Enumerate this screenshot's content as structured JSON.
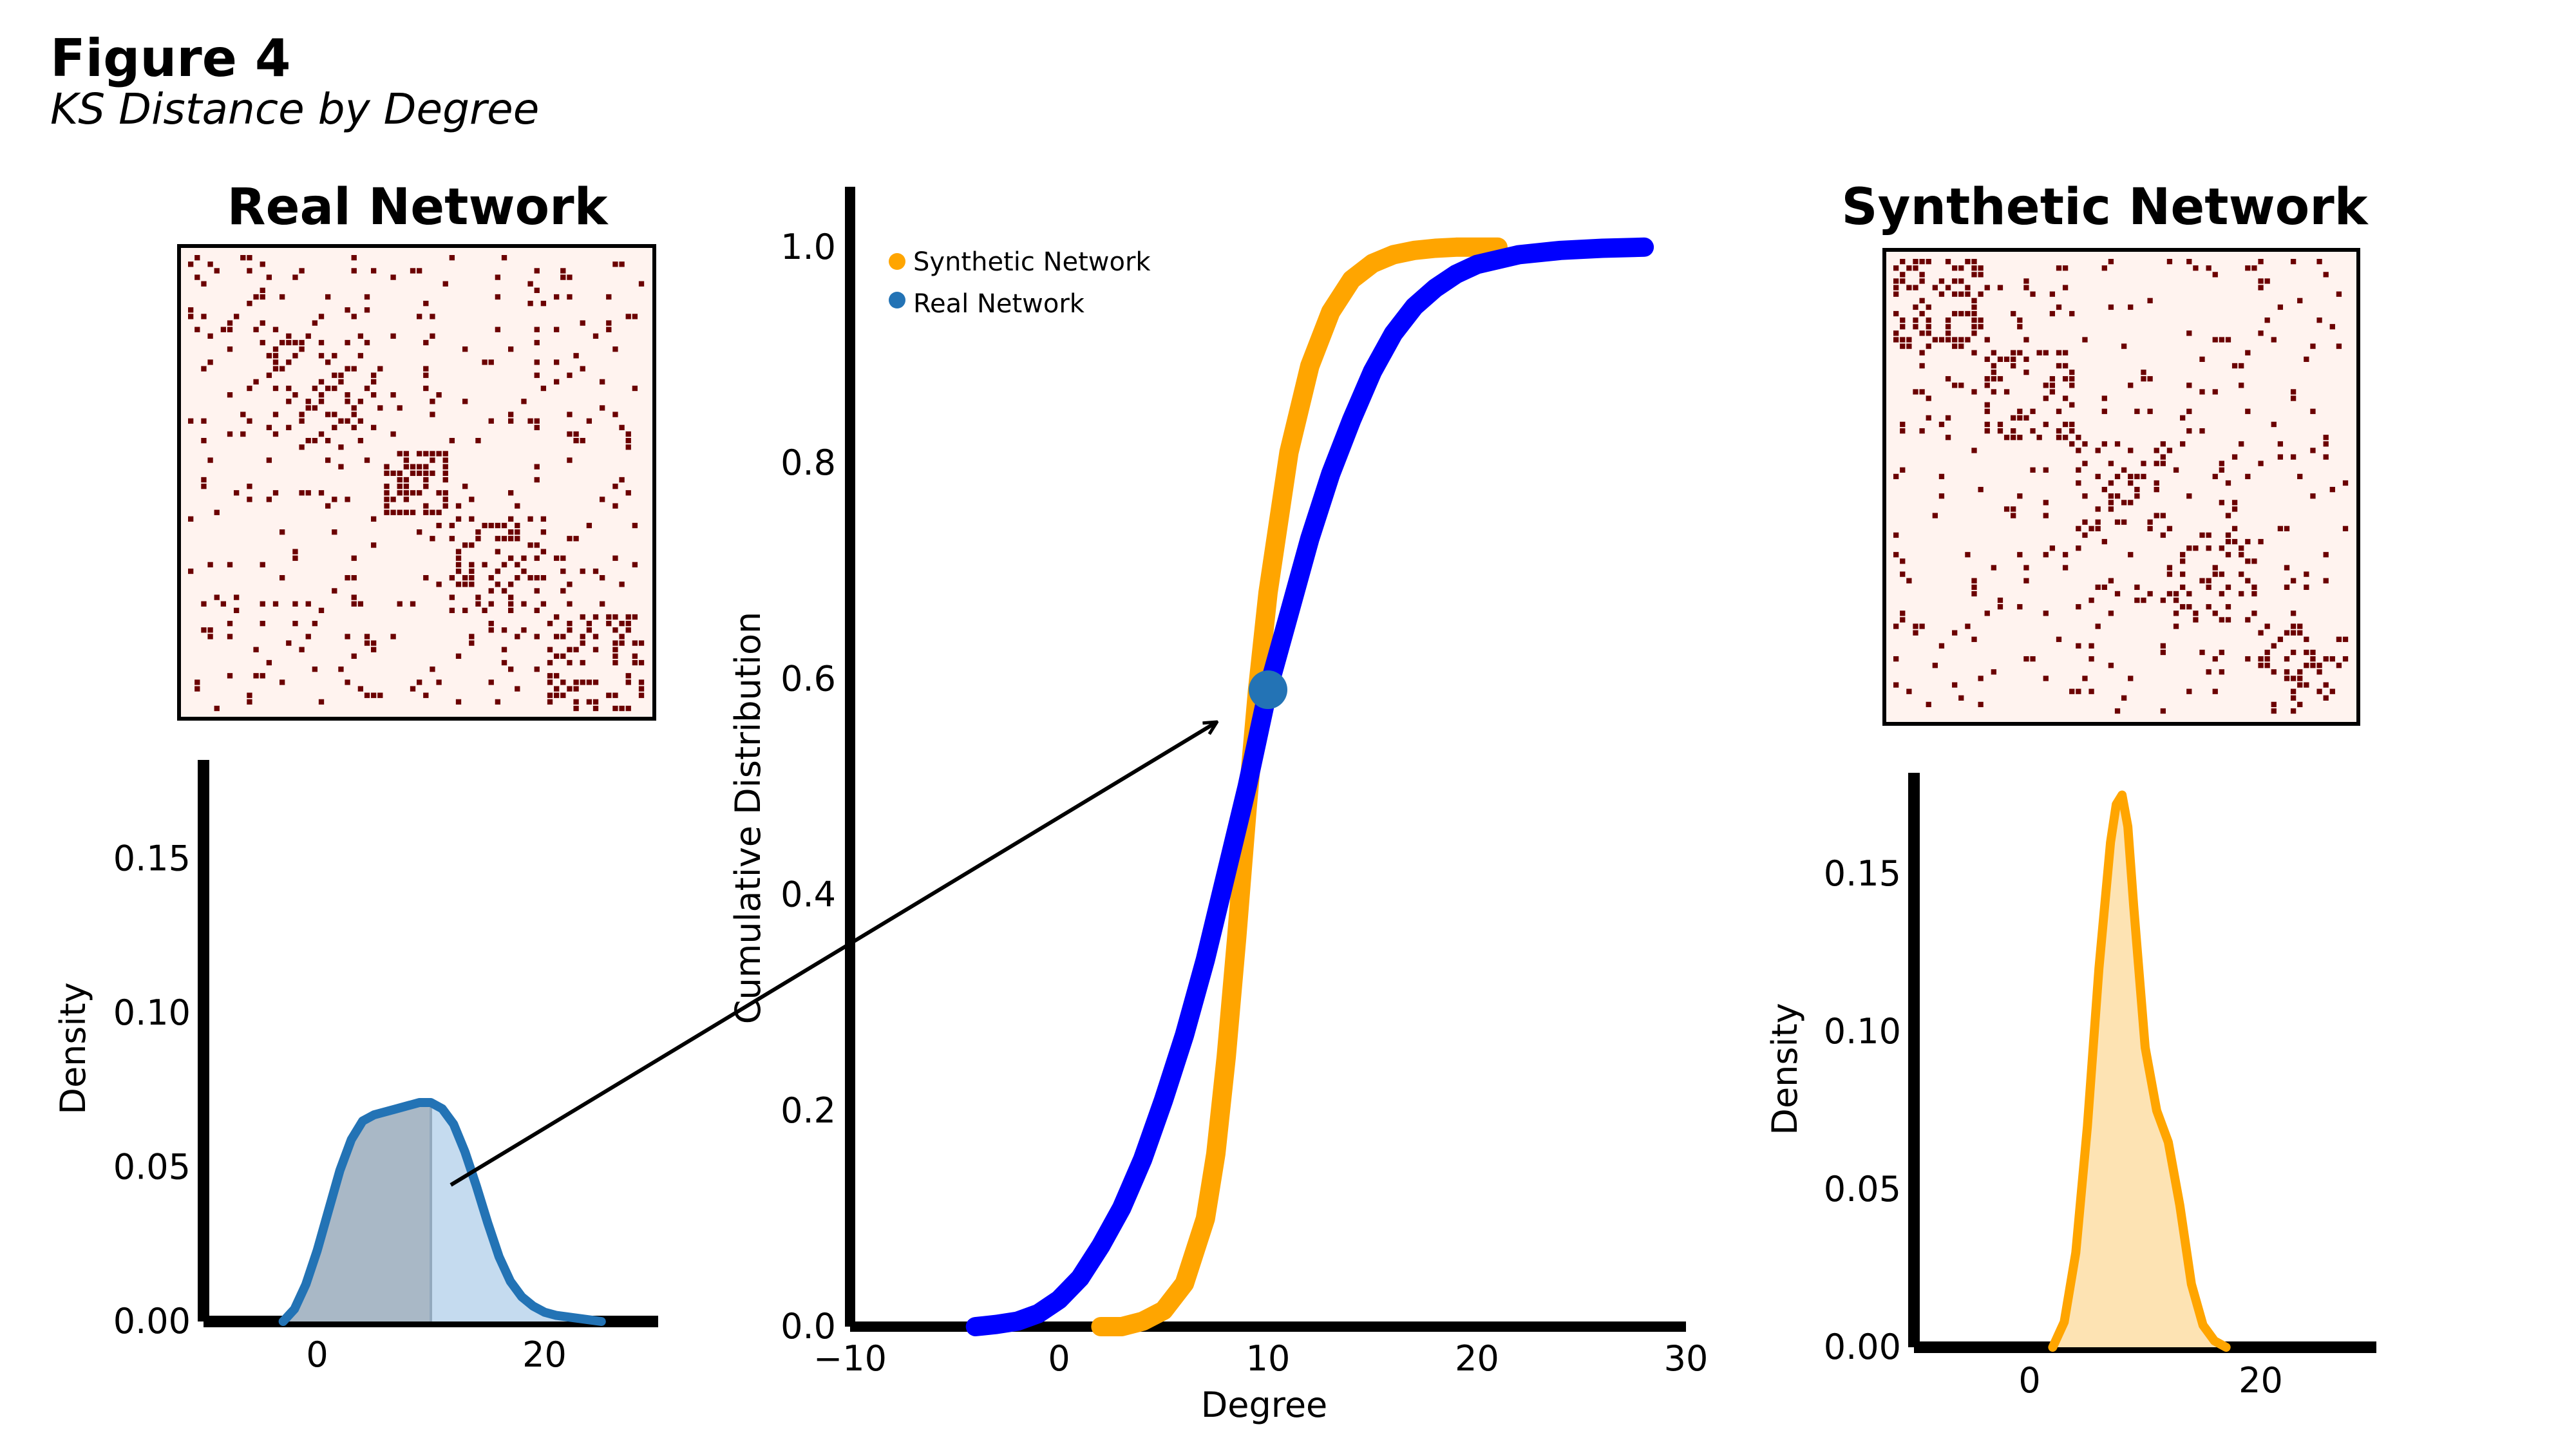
{
  "figure": {
    "title": "Figure 4",
    "subtitle": "KS Distance by Degree"
  },
  "colors": {
    "matrix_cell": "#6b0000",
    "matrix_bg": "#fff3ef",
    "real_kde": "#2373b5",
    "real_fill_dark": "#a9b8c6",
    "real_fill_light": "#c5dbef",
    "synthetic_kde": "#ffa500",
    "synthetic_fill": "#fde3b3",
    "synthetic_cdf": "#ffa500",
    "real_cdf": "#0000ff",
    "ks_marker": "#2373b5"
  },
  "matrices": {
    "real": {
      "title": "Real Network",
      "size": 70,
      "density": 0.11,
      "clustered": true
    },
    "synthetic": {
      "title": "Synthetic Network",
      "size": 70,
      "density": 0.12,
      "clustered": false
    }
  },
  "chart_data": [
    {
      "id": "cdf",
      "type": "line",
      "title": "",
      "xlabel": "Degree",
      "ylabel": "Cumulative Distribution",
      "xlim": [
        -10,
        30
      ],
      "ylim": [
        0,
        1.05
      ],
      "xticks": [
        -10,
        0,
        10,
        20,
        30
      ],
      "xtick_labels": [
        "−10",
        "0",
        "10",
        "20",
        "30"
      ],
      "yticks": [
        0.0,
        0.2,
        0.4,
        0.6,
        0.8,
        1.0
      ],
      "ytick_labels": [
        "0.0",
        "0.2",
        "0.4",
        "0.6",
        "0.8",
        "1.0"
      ],
      "legend_position": "top-left",
      "series": [
        {
          "name": "Synthetic Network",
          "x": [
            2,
            3,
            4,
            5,
            6,
            7,
            7.5,
            8,
            8.5,
            9,
            9.5,
            10,
            11,
            12,
            13,
            14,
            15,
            16,
            17,
            18,
            19,
            20,
            21
          ],
          "y": [
            0.0,
            0.0,
            0.005,
            0.015,
            0.04,
            0.1,
            0.16,
            0.25,
            0.36,
            0.48,
            0.59,
            0.68,
            0.81,
            0.89,
            0.94,
            0.97,
            0.985,
            0.993,
            0.997,
            0.999,
            1.0,
            1.0,
            1.0
          ]
        },
        {
          "name": "Real Network",
          "x": [
            -4,
            -3,
            -2,
            -1,
            0,
            1,
            2,
            3,
            4,
            5,
            6,
            7,
            8,
            9,
            10,
            11,
            12,
            13,
            14,
            15,
            16,
            17,
            18,
            19,
            20,
            22,
            24,
            26,
            28
          ],
          "y": [
            0.0,
            0.002,
            0.005,
            0.012,
            0.025,
            0.045,
            0.075,
            0.11,
            0.155,
            0.21,
            0.27,
            0.34,
            0.42,
            0.5,
            0.59,
            0.66,
            0.73,
            0.79,
            0.84,
            0.885,
            0.92,
            0.945,
            0.962,
            0.975,
            0.984,
            0.993,
            0.997,
            0.999,
            1.0
          ]
        }
      ],
      "ks_point": {
        "x": 10,
        "y": 0.59
      }
    },
    {
      "id": "real-density",
      "type": "area",
      "title": "",
      "xlabel": "",
      "ylabel": "Density",
      "xlim": [
        -10,
        30
      ],
      "ylim": [
        0,
        0.18
      ],
      "xticks": [
        0,
        20
      ],
      "xtick_labels": [
        "0",
        "20"
      ],
      "yticks": [
        0.0,
        0.05,
        0.1,
        0.15
      ],
      "ytick_labels": [
        "0.00",
        "0.05",
        "0.10",
        "0.15"
      ],
      "shade_below_x": 10,
      "series": [
        {
          "name": "",
          "x": [
            -3,
            -2,
            -1,
            0,
            1,
            2,
            3,
            4,
            5,
            6,
            7,
            8,
            9,
            10,
            11,
            12,
            13,
            14,
            15,
            16,
            17,
            18,
            19,
            20,
            21,
            22,
            23,
            24,
            25
          ],
          "y": [
            0.0,
            0.004,
            0.012,
            0.023,
            0.036,
            0.049,
            0.059,
            0.065,
            0.067,
            0.068,
            0.069,
            0.07,
            0.071,
            0.071,
            0.069,
            0.064,
            0.055,
            0.044,
            0.032,
            0.021,
            0.013,
            0.008,
            0.005,
            0.003,
            0.002,
            0.0015,
            0.001,
            0.0005,
            0.0
          ]
        }
      ]
    },
    {
      "id": "synthetic-density",
      "type": "area",
      "title": "",
      "xlabel": "",
      "ylabel": "Density",
      "xlim": [
        -10,
        30
      ],
      "ylim": [
        0,
        0.18
      ],
      "xticks": [
        0,
        20
      ],
      "xtick_labels": [
        "0",
        "20"
      ],
      "yticks": [
        0.0,
        0.05,
        0.1,
        0.15
      ],
      "ytick_labels": [
        "0.00",
        "0.05",
        "0.10",
        "0.15"
      ],
      "series": [
        {
          "name": "",
          "x": [
            2,
            3,
            4,
            5,
            6,
            7,
            7.5,
            8,
            8.5,
            9,
            10,
            11,
            12,
            13,
            14,
            15,
            16,
            17
          ],
          "y": [
            0.0,
            0.008,
            0.03,
            0.07,
            0.12,
            0.16,
            0.172,
            0.175,
            0.165,
            0.14,
            0.095,
            0.075,
            0.065,
            0.045,
            0.02,
            0.007,
            0.002,
            0.0
          ]
        }
      ]
    }
  ]
}
